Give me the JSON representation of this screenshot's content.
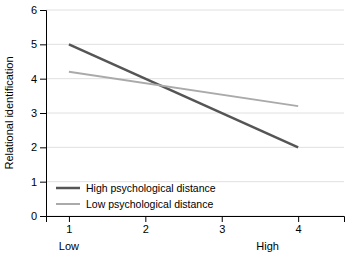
{
  "chart_data": {
    "type": "line",
    "y_label": "Relational identification",
    "x": [
      1,
      4
    ],
    "series": [
      {
        "name": "High psychological distance",
        "color": "#555555",
        "values": [
          5.0,
          2.0
        ]
      },
      {
        "name": "Low psychological distance",
        "color": "#aaaaaa",
        "values": [
          4.2,
          3.2
        ]
      }
    ],
    "xlim": [
      0.7,
      4.6
    ],
    "ylim": [
      0,
      6
    ],
    "xticks": [
      1,
      2,
      3,
      4
    ],
    "yticks": [
      0,
      1,
      2,
      3,
      4,
      5,
      6
    ],
    "grid": "y",
    "legend": "lower left",
    "annotations": [
      {
        "text": "Low",
        "x": 1.0
      },
      {
        "text": "High",
        "x": 3.6
      }
    ]
  }
}
